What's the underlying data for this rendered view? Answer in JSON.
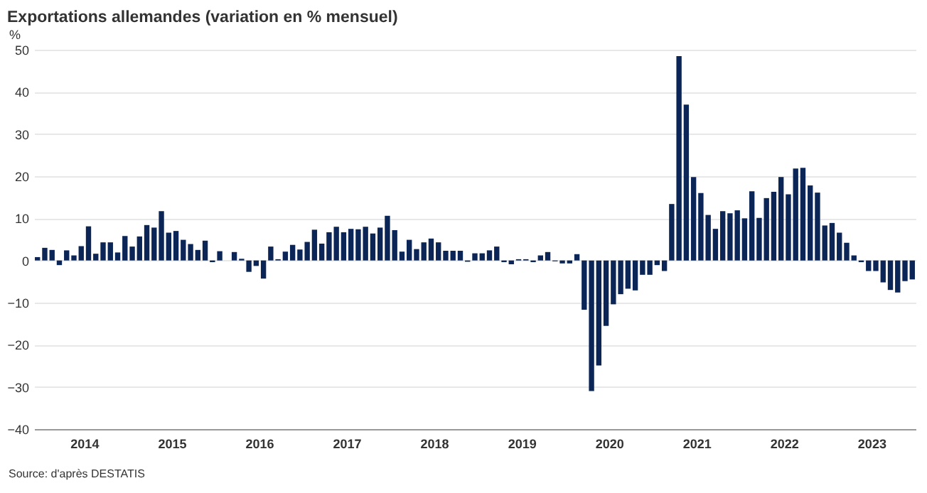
{
  "chart_data": {
    "type": "bar",
    "title": "Exportations allemandes (variation en % mensuel)",
    "ylabel": "%",
    "annotations": [
      "Source: d'après DESTATIS"
    ],
    "categories": [
      null,
      null,
      null,
      null,
      null,
      null,
      null,
      "2014",
      null,
      null,
      null,
      null,
      null,
      null,
      null,
      null,
      null,
      null,
      null,
      "2015",
      null,
      null,
      null,
      null,
      null,
      null,
      null,
      null,
      null,
      null,
      null,
      "2016",
      null,
      null,
      null,
      null,
      null,
      null,
      null,
      null,
      null,
      null,
      null,
      "2017",
      null,
      null,
      null,
      null,
      null,
      null,
      null,
      null,
      null,
      null,
      null,
      "2018",
      null,
      null,
      null,
      null,
      null,
      null,
      null,
      null,
      null,
      null,
      null,
      "2019",
      null,
      null,
      null,
      null,
      null,
      null,
      null,
      null,
      null,
      null,
      null,
      "2020",
      null,
      null,
      null,
      null,
      null,
      null,
      null,
      null,
      null,
      null,
      null,
      "2021",
      null,
      null,
      null,
      null,
      null,
      null,
      null,
      null,
      null,
      null,
      null,
      "2022",
      null,
      null,
      null,
      null,
      null,
      null,
      null,
      null,
      null,
      null,
      null,
      "2023",
      null,
      null,
      null,
      null,
      null
    ],
    "values": [
      0.8,
      3.0,
      2.5,
      -1.1,
      2.4,
      1.2,
      3.4,
      8.1,
      1.6,
      4.3,
      4.3,
      1.9,
      5.8,
      3.3,
      5.7,
      8.4,
      7.8,
      11.7,
      6.6,
      7.0,
      4.9,
      3.9,
      2.5,
      4.7,
      -0.4,
      2.2,
      0,
      2.0,
      0.4,
      -2.7,
      -1.3,
      -4.3,
      3.3,
      0.3,
      2.1,
      3.7,
      2.6,
      4.4,
      7.3,
      4.0,
      6.7,
      8.0,
      6.7,
      7.5,
      7.4,
      8.0,
      6.4,
      7.8,
      10.6,
      7.2,
      2.1,
      4.9,
      2.7,
      4.3,
      5.2,
      4.3,
      2.3,
      2.3,
      2.3,
      -0.3,
      1.7,
      1.7,
      2.4,
      3.3,
      -0.4,
      -0.9,
      0.3,
      0.3,
      -0.4,
      1.2,
      2.0,
      -0.2,
      -0.7,
      -0.7,
      1.5,
      -11.7,
      -31.0,
      -24.9,
      -15.5,
      -10.4,
      -8.0,
      -6.7,
      -7.1,
      -3.4,
      -3.4,
      -1.1,
      -2.5,
      13.4,
      48.5,
      37.0,
      19.8,
      16.0,
      10.8,
      7.5,
      11.7,
      11.2,
      11.9,
      10.0,
      16.4,
      10.1,
      14.8,
      16.3,
      19.8,
      15.7,
      21.8,
      22.0,
      17.8,
      16.1,
      8.3,
      8.9,
      6.6,
      4.2,
      1.2,
      -0.4,
      -2.5,
      -2.5,
      -5.2,
      -7.0,
      -7.6,
      -4.9,
      -4.5
    ],
    "color": "#0b2556",
    "ylim": [
      -40,
      50
    ],
    "yticks": [
      -40,
      -30,
      -20,
      -10,
      0,
      10,
      20,
      30,
      40,
      50
    ],
    "grid": "y"
  }
}
